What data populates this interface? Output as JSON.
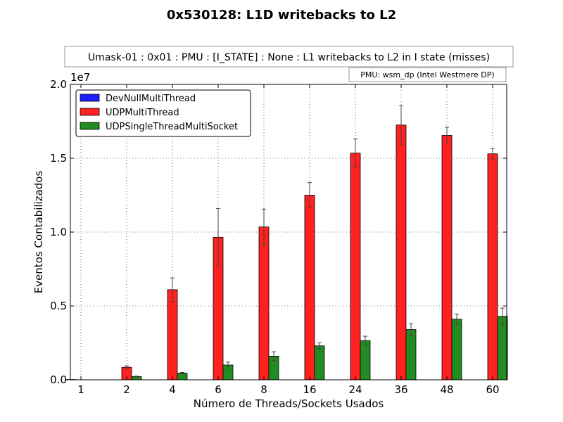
{
  "chart_data": {
    "type": "bar",
    "title": "0x530128: L1D writebacks to L2",
    "subtitle": "Umask-01 : 0x01 : PMU : [I_STATE] : None : L1 writebacks to L2 in I state (misses)",
    "annotation": "PMU: wsm_dp (Intel Westmere DP)",
    "xlabel": "Número de Threads/Sockets Usados",
    "ylabel": "Eventos Contabilizados",
    "y_multiplier_label": "1e7",
    "ylim": [
      0,
      2.0
    ],
    "y_ticks": [
      "0.0",
      "0.5",
      "1.0",
      "1.5",
      "2.0"
    ],
    "grid": true,
    "legend_position": "upper-left",
    "categories": [
      "1",
      "2",
      "4",
      "6",
      "8",
      "16",
      "24",
      "36",
      "48",
      "60"
    ],
    "series": [
      {
        "name": "DevNullMultiThread",
        "color": "#1f1fff",
        "values": [
          0.002,
          0.0,
          0.0,
          0.0,
          0.0,
          0.0,
          0.0,
          0.0,
          0.0,
          0.0
        ],
        "errors": [
          0.0,
          0.0,
          0.0,
          0.0,
          0.0,
          0.0,
          0.0,
          0.0,
          0.0,
          0.0
        ]
      },
      {
        "name": "UDPMultiThread",
        "color": "#ff2020",
        "values": [
          0.0,
          0.085,
          0.61,
          0.965,
          1.035,
          1.25,
          1.535,
          1.725,
          1.655,
          1.53
        ],
        "errors": [
          0.0,
          0.01,
          0.08,
          0.195,
          0.12,
          0.085,
          0.095,
          0.13,
          0.055,
          0.035
        ]
      },
      {
        "name": "UDPSingleThreadMultiSocket",
        "color": "#228b22",
        "values": [
          0.0,
          0.022,
          0.045,
          0.1,
          0.16,
          0.23,
          0.265,
          0.34,
          0.41,
          0.43
        ],
        "errors": [
          0.0,
          0.003,
          0.005,
          0.02,
          0.03,
          0.02,
          0.03,
          0.04,
          0.035,
          0.055
        ]
      }
    ]
  }
}
